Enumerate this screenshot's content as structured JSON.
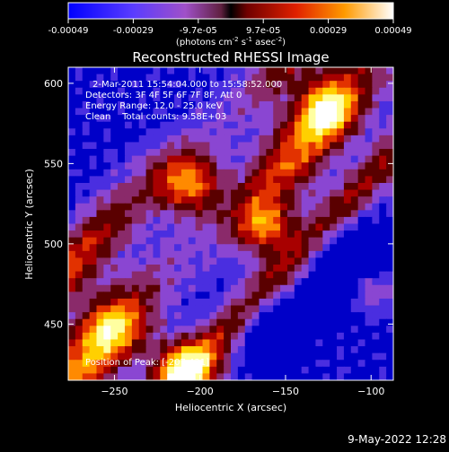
{
  "colorbar": {
    "ticks": [
      "-0.00049",
      "-0.00029",
      "-9.7e-05",
      "9.7e-05",
      "0.00029",
      "0.00049"
    ],
    "unit": "(photons cm",
    "unit_sup1": "-2",
    "unit_mid": " s",
    "unit_sup2": "-1",
    "unit_end": " asec",
    "unit_sup3": "-2",
    "unit_close": ")"
  },
  "footer": {
    "timestamp": "9-May-2022 12:28"
  },
  "annotations": {
    "line1": "2-Mar-2011 15:54:04.000 to 15:58:52.000",
    "line2": "Detectors: 3F 4F 5F 6F 7F 8F, Att 0",
    "line3": "Energy Range: 12.0 - 25.0 keV",
    "line4": "Clean    Total counts: 9.58E+03",
    "peak": "Position of Peak: [-207,431]"
  },
  "colors": {
    "map": [
      "#0000c8",
      "#4a2ee0",
      "#8a46d2",
      "#8a2a6a",
      "#5a0000",
      "#a80000",
      "#e23200",
      "#ff8a00",
      "#ffd000",
      "#ffffa0",
      "#ffffff"
    ]
  },
  "chart_data": {
    "type": "heatmap",
    "title": "Reconstructed RHESSI Image",
    "xlabel": "Heliocentric X (arcsec)",
    "ylabel": "Heliocentric Y (arcsec)",
    "xlim": [
      -277,
      -87
    ],
    "ylim": [
      415,
      610
    ],
    "xticks": [
      -250,
      -200,
      -150,
      -100
    ],
    "yticks": [
      450,
      500,
      550,
      600
    ],
    "clim": [
      -0.00049,
      0.00049
    ],
    "peak_position": [
      -207,
      431
    ]
  }
}
